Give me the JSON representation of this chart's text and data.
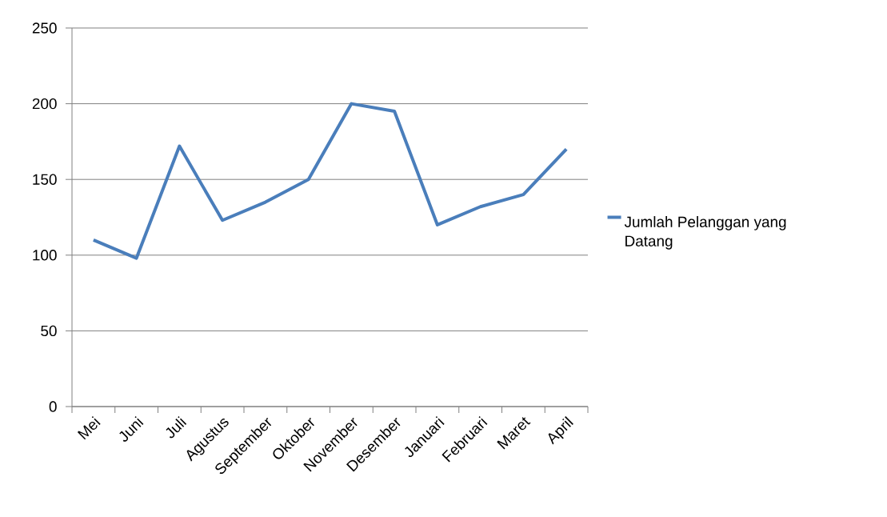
{
  "chart_data": {
    "type": "line",
    "categories": [
      "Mei",
      "Juni",
      "Juli",
      "Agustus",
      "September",
      "Oktober",
      "November",
      "Desember",
      "Januari",
      "Februari",
      "Maret",
      "April"
    ],
    "series": [
      {
        "name": "Jumlah Pelanggan yang Datang",
        "color": "#4a7ebb",
        "values": [
          110,
          98,
          172,
          123,
          135,
          150,
          200,
          195,
          120,
          132,
          140,
          170
        ]
      }
    ],
    "ylim": [
      0,
      250
    ],
    "yticks": [
      0,
      50,
      100,
      150,
      200,
      250
    ],
    "grid": "y",
    "legend": "right"
  }
}
